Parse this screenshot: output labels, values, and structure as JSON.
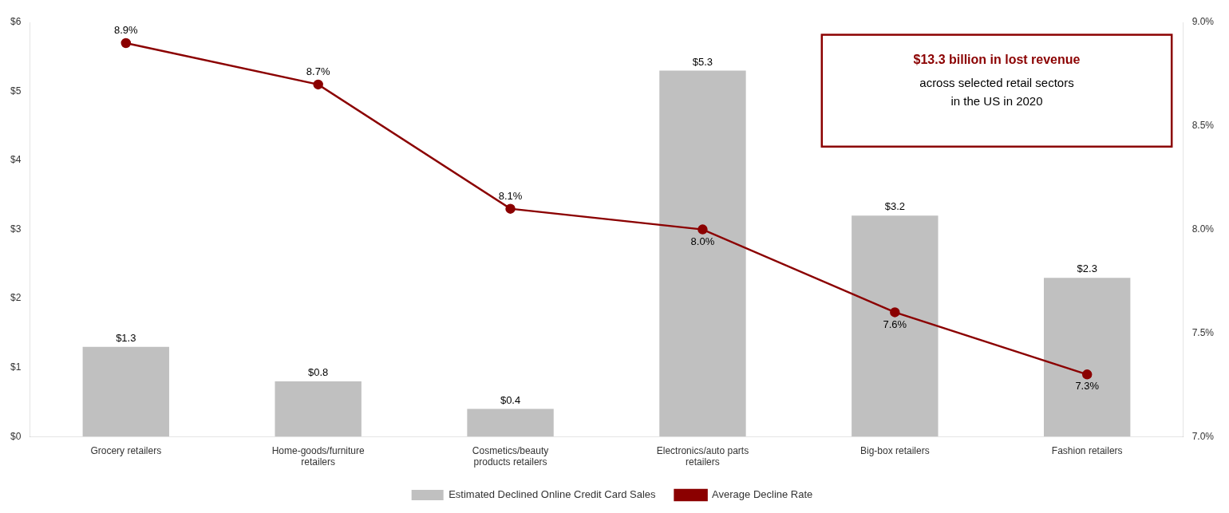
{
  "chart_data": {
    "type": "bar",
    "categories": [
      "Grocery retailers",
      "Home-goods/furniture\nretailers",
      "Cosmetics/beauty\nproducts retailers",
      "Electronics/auto parts\nretailers",
      "Big-box retailers",
      "Fashion retailers"
    ],
    "series": [
      {
        "name": "Estimated Declined Online Credit Card Sales",
        "type": "bar",
        "color": "#C0C0C0",
        "values": [
          1.3,
          0.8,
          0.4,
          5.3,
          3.2,
          2.3
        ],
        "value_labels": [
          "$1.3",
          "$0.8",
          "$0.4",
          "$5.3",
          "$3.2",
          "$2.3"
        ]
      },
      {
        "name": "Average Decline Rate",
        "type": "line",
        "color": "#8B0000",
        "axis": "y2",
        "marker": "circle",
        "values": [
          8.9,
          8.7,
          8.1,
          8.0,
          7.6,
          7.3
        ],
        "value_labels": [
          "8.9%",
          "8.7%",
          "8.1%",
          "8.0%",
          "7.6%",
          "7.3%"
        ]
      }
    ],
    "ylim": [
      0,
      6
    ],
    "yticks": [
      {
        "value": 0,
        "label": "$0"
      },
      {
        "value": 1,
        "label": "$1"
      },
      {
        "value": 2,
        "label": "$2"
      },
      {
        "value": 3,
        "label": "$3"
      },
      {
        "value": 4,
        "label": "$4"
      },
      {
        "value": 5,
        "label": "$5"
      },
      {
        "value": 6,
        "label": "$6"
      }
    ],
    "y2lim": [
      7.0,
      9.0
    ],
    "y2ticks": [
      {
        "value": 7.0,
        "label": "7.0%"
      },
      {
        "value": 7.5,
        "label": "7.5%"
      },
      {
        "value": 8.0,
        "label": "8.0%"
      },
      {
        "value": 8.5,
        "label": "8.5%"
      },
      {
        "value": 9.0,
        "label": "9.0%"
      }
    ],
    "annotations": [
      {
        "text": "$13.3 billion in lost revenue",
        "color": "#8B0000"
      },
      {
        "text": "across selected retail sectors\nin the US in 2020"
      }
    ],
    "data_labels": true,
    "grid": false,
    "legend": "bottom"
  }
}
